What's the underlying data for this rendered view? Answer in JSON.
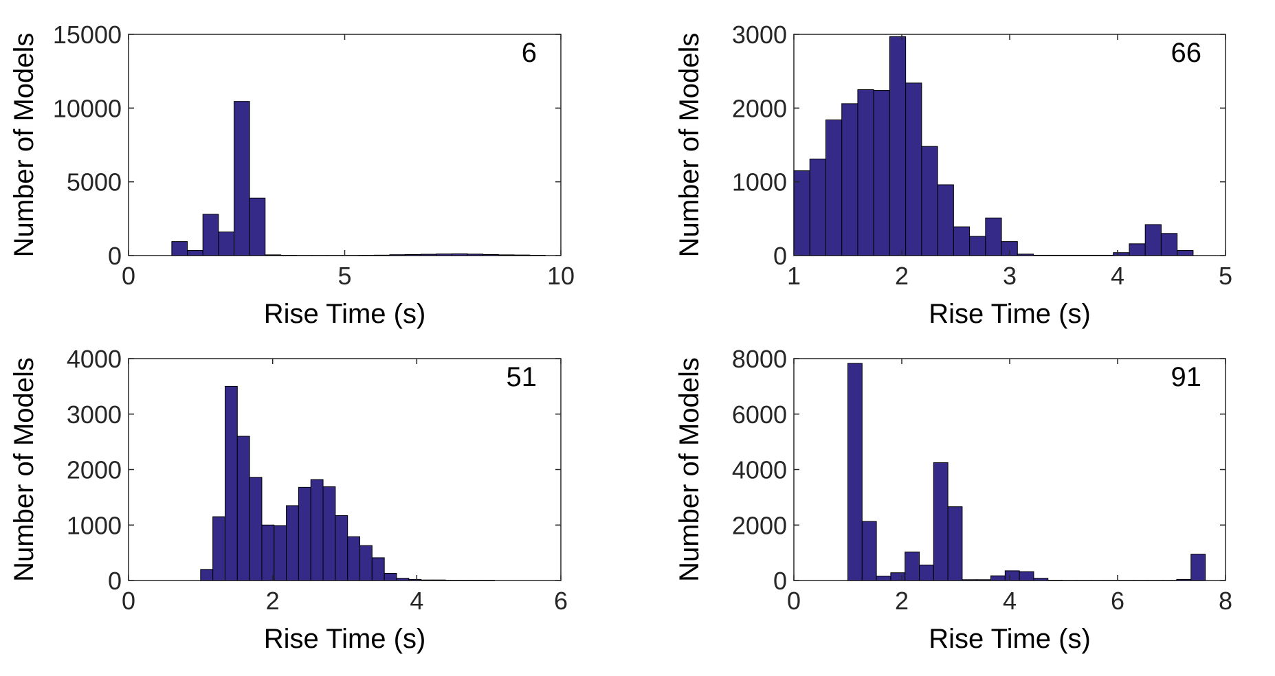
{
  "style": {
    "bar_fill": "#352a87",
    "bar_edge": "#000000",
    "axis_color": "#262626"
  },
  "chart_data": [
    {
      "type": "bar",
      "annotation": "6",
      "xlabel": "Rise Time (s)",
      "ylabel": "Number of Models",
      "xlim": [
        0,
        10
      ],
      "ylim": [
        0,
        15000
      ],
      "xticks": [
        0,
        5,
        10
      ],
      "yticks": [
        0,
        5000,
        10000,
        15000
      ],
      "grid": false,
      "bin_edges": [
        1.0,
        1.36,
        1.72,
        2.08,
        2.44,
        2.8,
        3.16,
        3.52,
        3.88,
        4.24,
        4.6,
        4.96,
        5.32,
        5.68,
        6.04,
        6.4,
        6.76,
        7.12,
        7.48,
        7.84,
        8.2,
        8.56,
        8.92,
        9.28,
        9.64
      ],
      "values": [
        950,
        350,
        2800,
        1600,
        10450,
        3900,
        50,
        20,
        10,
        10,
        10,
        10,
        20,
        30,
        60,
        70,
        90,
        110,
        120,
        100,
        70,
        50,
        40,
        20
      ]
    },
    {
      "type": "bar",
      "annotation": "66",
      "xlabel": "Rise Time (s)",
      "ylabel": "Number of Models",
      "xlim": [
        1,
        5
      ],
      "ylim": [
        0,
        3000
      ],
      "xticks": [
        1,
        2,
        3,
        4,
        5
      ],
      "yticks": [
        0,
        1000,
        2000,
        3000
      ],
      "grid": false,
      "bin_edges": [
        1.0,
        1.148,
        1.296,
        1.444,
        1.592,
        1.74,
        1.888,
        2.036,
        2.184,
        2.332,
        2.48,
        2.628,
        2.776,
        2.924,
        3.072,
        3.22,
        3.368,
        3.516,
        3.664,
        3.812,
        3.96,
        4.108,
        4.256,
        4.404,
        4.552,
        4.7
      ],
      "values": [
        1150,
        1310,
        1840,
        2060,
        2250,
        2240,
        2970,
        2340,
        1480,
        960,
        390,
        260,
        510,
        190,
        20,
        5,
        5,
        5,
        5,
        5,
        40,
        160,
        420,
        300,
        70
      ]
    },
    {
      "type": "bar",
      "annotation": "51",
      "xlabel": "Rise Time (s)",
      "ylabel": "Number of Models",
      "xlim": [
        0,
        6
      ],
      "ylim": [
        0,
        4000
      ],
      "xticks": [
        0,
        2,
        4,
        6
      ],
      "yticks": [
        0,
        1000,
        2000,
        3000,
        4000
      ],
      "grid": false,
      "bin_edges": [
        1.0,
        1.17,
        1.34,
        1.51,
        1.68,
        1.85,
        2.02,
        2.19,
        2.36,
        2.53,
        2.7,
        2.87,
        3.04,
        3.21,
        3.38,
        3.55,
        3.72,
        3.89,
        4.06,
        4.23,
        4.4,
        4.57,
        4.74,
        4.91,
        5.08
      ],
      "values": [
        200,
        1150,
        3500,
        2600,
        1860,
        1000,
        990,
        1350,
        1680,
        1820,
        1690,
        1170,
        790,
        630,
        410,
        130,
        40,
        20,
        10,
        10,
        5,
        5,
        5,
        5
      ]
    },
    {
      "type": "bar",
      "annotation": "91",
      "xlabel": "Rise Time (s)",
      "ylabel": "Number of Models",
      "xlim": [
        0,
        8
      ],
      "ylim": [
        0,
        8000
      ],
      "xticks": [
        0,
        2,
        4,
        6,
        8
      ],
      "yticks": [
        0,
        2000,
        4000,
        6000,
        8000
      ],
      "grid": false,
      "bin_edges": [
        1.0,
        1.265,
        1.53,
        1.795,
        2.06,
        2.325,
        2.59,
        2.855,
        3.12,
        3.385,
        3.65,
        3.915,
        4.18,
        4.445,
        4.71,
        4.975,
        5.24,
        5.505,
        5.77,
        6.035,
        6.3,
        6.565,
        6.83,
        7.095,
        7.36,
        7.625
      ],
      "values": [
        7830,
        2130,
        160,
        280,
        1030,
        560,
        4250,
        2660,
        30,
        30,
        170,
        350,
        320,
        80,
        10,
        5,
        5,
        5,
        5,
        5,
        5,
        5,
        5,
        40,
        950
      ]
    }
  ]
}
